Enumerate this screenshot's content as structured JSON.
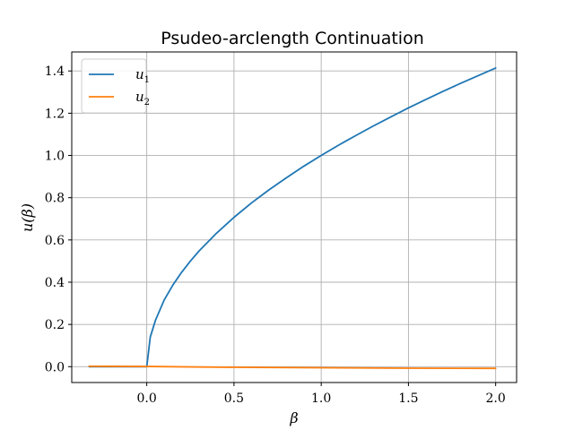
{
  "chart_data": {
    "type": "line",
    "title": "Psudeo-arclength Continuation",
    "xlabel": "β",
    "ylabel": "u(β)",
    "xlim": [
      -0.43,
      2.12
    ],
    "ylim": [
      -0.075,
      1.49
    ],
    "xticks": [
      0.0,
      0.5,
      1.0,
      1.5,
      2.0
    ],
    "xtick_labels": [
      "0.0",
      "0.5",
      "1.0",
      "1.5",
      "2.0"
    ],
    "yticks": [
      0.0,
      0.2,
      0.4,
      0.6,
      0.8,
      1.0,
      1.2,
      1.4
    ],
    "ytick_labels": [
      "0.0",
      "0.2",
      "0.4",
      "0.6",
      "0.8",
      "1.0",
      "1.2",
      "1.4"
    ],
    "grid": true,
    "legend_position": "top-left",
    "series": [
      {
        "name": "u",
        "subscript": "1",
        "color": "#1f77b4",
        "x": [
          -0.33,
          -0.02,
          0.0,
          0.02,
          0.05,
          0.1,
          0.15,
          0.2,
          0.25,
          0.3,
          0.4,
          0.5,
          0.6,
          0.7,
          0.8,
          0.9,
          1.0,
          1.1,
          1.2,
          1.3,
          1.4,
          1.5,
          1.6,
          1.7,
          1.8,
          1.9,
          2.0
        ],
        "values": [
          0.0,
          0.0,
          0.0,
          0.14,
          0.22,
          0.316,
          0.387,
          0.447,
          0.5,
          0.548,
          0.632,
          0.707,
          0.775,
          0.837,
          0.894,
          0.949,
          1.0,
          1.049,
          1.095,
          1.14,
          1.183,
          1.225,
          1.265,
          1.304,
          1.342,
          1.378,
          1.414
        ]
      },
      {
        "name": "u",
        "subscript": "2",
        "color": "#ff7f0e",
        "x": [
          -0.33,
          0.0,
          0.5,
          1.0,
          1.5,
          2.0
        ],
        "values": [
          0.002,
          0.001,
          -0.003,
          -0.005,
          -0.007,
          -0.008
        ]
      }
    ]
  }
}
